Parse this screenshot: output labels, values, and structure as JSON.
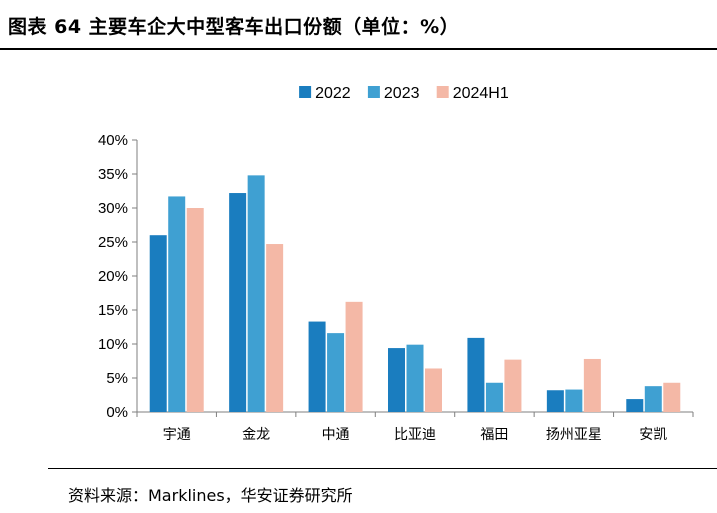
{
  "figure": {
    "title": "图表 64 主要车企大中型客车出口份额（单位：%）",
    "source": "资料来源：Marklines，华安证券研究所"
  },
  "chart_data": {
    "type": "bar",
    "categories": [
      "宇通",
      "金龙",
      "中通",
      "比亚迪",
      "福田",
      "扬州亚星",
      "安凯"
    ],
    "series": [
      {
        "name": "2022",
        "color": "#1a7dbf",
        "values": [
          26.0,
          32.2,
          13.3,
          9.4,
          10.9,
          3.2,
          1.9
        ]
      },
      {
        "name": "2023",
        "color": "#3fa0d2",
        "values": [
          31.7,
          34.8,
          11.6,
          9.9,
          4.3,
          3.3,
          3.8
        ]
      },
      {
        "name": "2024H1",
        "color": "#f4b8a6",
        "values": [
          30.0,
          24.7,
          16.2,
          6.4,
          7.7,
          7.8,
          4.3
        ]
      }
    ],
    "ylim": [
      0,
      40
    ],
    "yticks": [
      "0%",
      "5%",
      "10%",
      "15%",
      "20%",
      "25%",
      "30%",
      "35%",
      "40%"
    ],
    "y_format": "percent",
    "legend_position": "top-center",
    "grid": false
  }
}
